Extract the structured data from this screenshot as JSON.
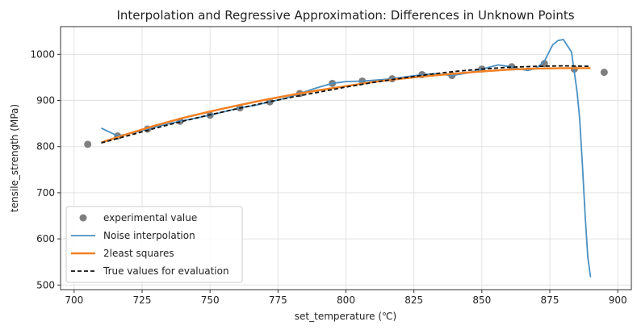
{
  "chart_data": {
    "type": "line",
    "title": "Interpolation and Regressive Approximation: Differences in Unknown Points",
    "xlabel": "set_temperature (℃)",
    "ylabel": "tensile_strength (MPa)",
    "xlim": [
      695,
      905
    ],
    "ylim": [
      490,
      1060
    ],
    "xticks": [
      700,
      725,
      750,
      775,
      800,
      825,
      850,
      875,
      900
    ],
    "yticks": [
      500,
      600,
      700,
      800,
      900,
      1000
    ],
    "grid": true,
    "legend_position": "lower-left",
    "colors": {
      "experimental": "#7f7f7f",
      "noise_interpolation": "#4a90c2",
      "least_squares": "#f28024",
      "true_values": "#111111"
    },
    "series": [
      {
        "name": "experimental value",
        "kind": "scatter",
        "x": [
          705,
          716,
          727,
          739,
          750,
          761,
          772,
          783,
          795,
          806,
          817,
          828,
          839,
          850,
          861,
          873,
          884,
          895
        ],
        "y": [
          805,
          823,
          838,
          855,
          868,
          884,
          897,
          915,
          937,
          942,
          947,
          956,
          954,
          968,
          973,
          980,
          968,
          961
        ]
      },
      {
        "name": "Noise interpolation",
        "kind": "line",
        "x": [
          710,
          716,
          722,
          727,
          733,
          739,
          745,
          750,
          756,
          761,
          767,
          772,
          778,
          783,
          789,
          795,
          800,
          806,
          811,
          817,
          822,
          828,
          833,
          839,
          845,
          850,
          856,
          861,
          864,
          867,
          870,
          873,
          876,
          878,
          880,
          883,
          885,
          886,
          887,
          888,
          889,
          890
        ],
        "y": [
          840,
          823,
          830,
          838,
          847,
          855,
          862,
          868,
          877,
          884,
          890,
          897,
          905,
          915,
          927,
          937,
          941,
          942,
          944,
          947,
          951,
          956,
          958,
          954,
          960,
          968,
          977,
          973,
          968,
          965,
          970,
          985,
          1020,
          1030,
          1032,
          1005,
          920,
          860,
          760,
          650,
          560,
          517
        ]
      },
      {
        "name": "2least squares",
        "kind": "line",
        "x": [
          710,
          720,
          730,
          740,
          750,
          760,
          770,
          780,
          790,
          800,
          810,
          820,
          830,
          840,
          850,
          860,
          870,
          880,
          890
        ],
        "y": [
          809,
          828,
          846,
          862,
          876,
          889,
          901,
          912,
          922,
          931,
          940,
          947,
          953,
          958,
          963,
          967,
          969,
          970,
          970
        ]
      },
      {
        "name": "True values for evaluation",
        "kind": "line",
        "x": [
          710,
          720,
          730,
          740,
          750,
          760,
          770,
          780,
          790,
          800,
          810,
          820,
          830,
          840,
          850,
          860,
          870,
          880,
          890
        ],
        "y": [
          808,
          824,
          840,
          855,
          869,
          882,
          895,
          907,
          918,
          929,
          939,
          948,
          956,
          963,
          968,
          972,
          974,
          975,
          974
        ]
      }
    ]
  }
}
